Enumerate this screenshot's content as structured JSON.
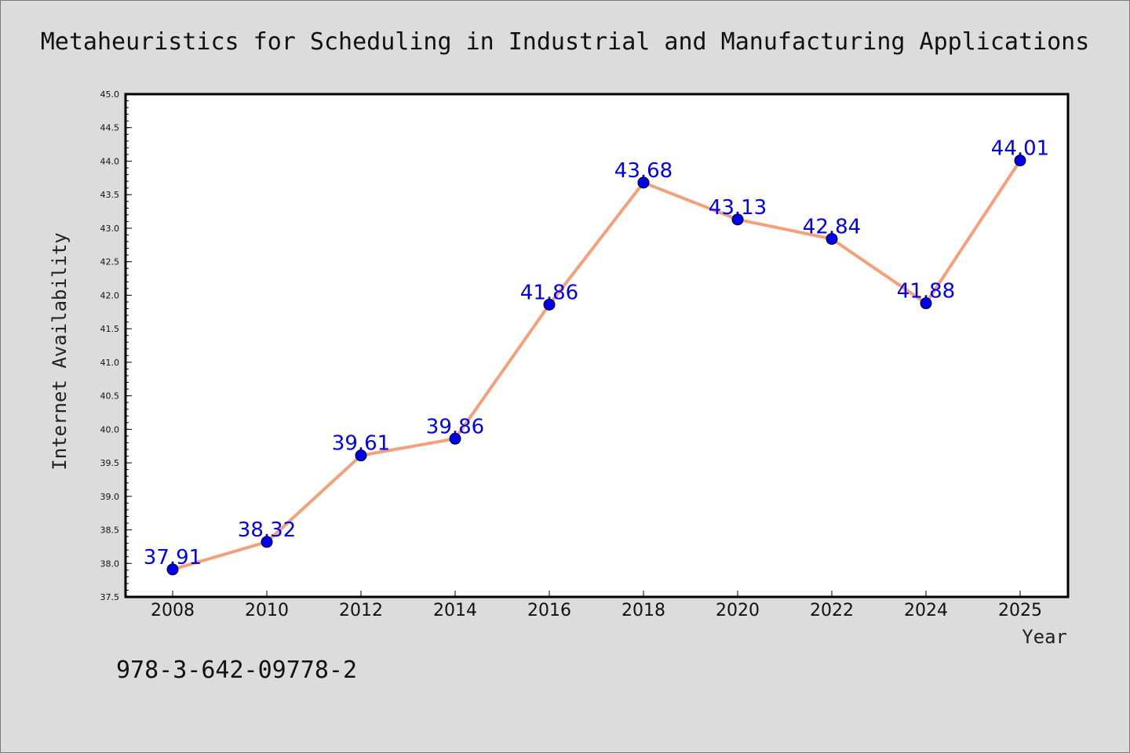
{
  "title": "Metaheuristics for Scheduling in Industrial and Manufacturing Applications",
  "footnote": "978-3-642-09778-2",
  "chart_data": {
    "type": "line",
    "title": "Metaheuristics for Scheduling in Industrial and Manufacturing Applications",
    "xlabel": "Year",
    "ylabel": "Internet Availability",
    "categories": [
      "2008",
      "2010",
      "2012",
      "2014",
      "2016",
      "2018",
      "2020",
      "2022",
      "2024",
      "2025"
    ],
    "series": [
      {
        "values": [
          37.91,
          38.32,
          39.61,
          39.86,
          41.86,
          43.68,
          43.13,
          42.84,
          41.88,
          44.01
        ]
      }
    ],
    "data_labels": [
      "37.91",
      "38.32",
      "39.61",
      "39.86",
      "41.86",
      "43.68",
      "43.13",
      "42.84",
      "41.88",
      "44.01"
    ],
    "ylim": [
      37.5,
      45.0
    ],
    "yticks": [
      "37.5",
      "38.0",
      "38.5",
      "39.0",
      "39.5",
      "40.0",
      "40.5",
      "41.0",
      "41.5",
      "42.0",
      "42.5",
      "43.0",
      "43.5",
      "44.0",
      "44.5",
      "45.0"
    ],
    "grid": false,
    "legend": "none",
    "colors": {
      "line": "#f4a07a",
      "marker": "#0000ee",
      "data_label": "#0000ee",
      "background": "#dcdcdc",
      "plot_background": "#ffffff"
    }
  }
}
